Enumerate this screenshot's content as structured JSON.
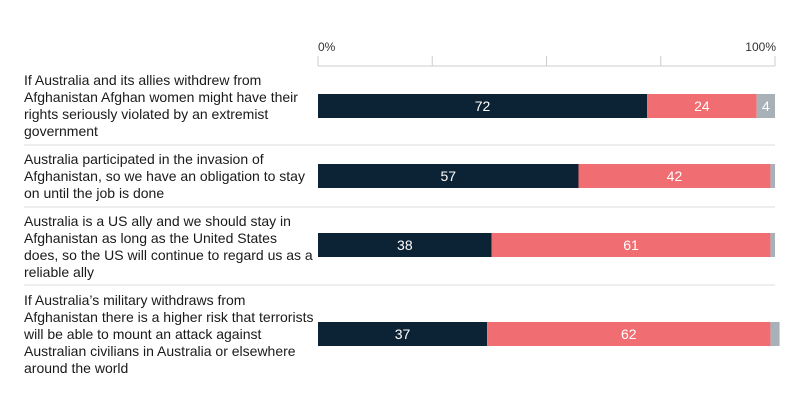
{
  "chart_data": {
    "type": "bar",
    "orientation": "horizontal",
    "stacked": true,
    "xlim": [
      0,
      100
    ],
    "tick_labels": [
      "0%",
      "",
      "",
      "",
      "100%"
    ],
    "categories": [
      "If Australia and its allies withdrew from Afghanistan Afghan women might have their rights seriously violated by an extremist government",
      "Australia participated in the invasion of Afghanistan, so we have an obligation to stay on until the job is done",
      "Australia is a US ally and we should stay in Afghanistan as long as the United States does, so the US will continue to regard us as a reliable ally",
      "If Australia’s military withdraws from Afghanistan there is a higher risk that terrorists will be able to mount an attack against Australian civilians in Australia or elsewhere around the world"
    ],
    "series": [
      {
        "name": "series-1",
        "color": "#0c2336",
        "values": [
          72,
          57,
          38,
          37
        ],
        "labels": [
          "72",
          "57",
          "38",
          "37"
        ]
      },
      {
        "name": "series-2",
        "color": "#f06e72",
        "values": [
          24,
          42,
          61,
          62
        ],
        "labels": [
          "24",
          "42",
          "61",
          "62"
        ]
      },
      {
        "name": "series-3",
        "color": "#a9b1b8",
        "values": [
          4,
          1,
          1,
          2
        ],
        "labels": [
          "4",
          "",
          "",
          ""
        ]
      }
    ],
    "legend": "none"
  }
}
